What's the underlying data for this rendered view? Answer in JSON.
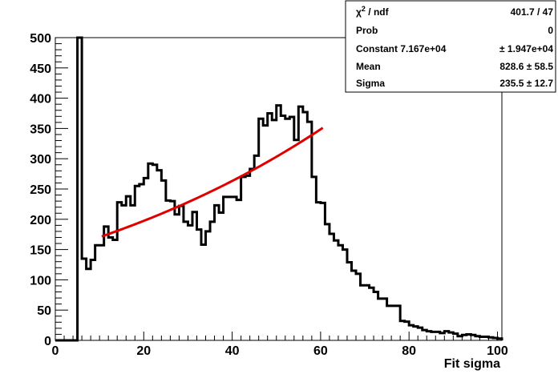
{
  "chart_data": {
    "type": "histogram",
    "title": "",
    "xlabel": "Fit sigma",
    "ylabel": "",
    "xlim": [
      0,
      101
    ],
    "ylim": [
      0,
      500
    ],
    "x_ticks": [
      0,
      20,
      40,
      60,
      80,
      100
    ],
    "y_ticks": [
      0,
      50,
      100,
      150,
      200,
      250,
      300,
      350,
      400,
      450,
      500
    ],
    "bin_width": 1,
    "bin_start": 0,
    "values": [
      0,
      0,
      0,
      0,
      0,
      500,
      135,
      118,
      133,
      157,
      157,
      188,
      170,
      166,
      228,
      223,
      238,
      223,
      255,
      258,
      268,
      292,
      290,
      281,
      264,
      231,
      230,
      208,
      222,
      196,
      190,
      212,
      183,
      158,
      180,
      196,
      223,
      211,
      237,
      237,
      237,
      232,
      270,
      272,
      283,
      305,
      366,
      355,
      375,
      364,
      388,
      371,
      366,
      369,
      331,
      386,
      377,
      361,
      270,
      228,
      227,
      192,
      176,
      165,
      157,
      150,
      129,
      115,
      110,
      91,
      91,
      87,
      80,
      69,
      69,
      57,
      57,
      57,
      32,
      31,
      25,
      23,
      21,
      17,
      15,
      14,
      14,
      12,
      15,
      13,
      11,
      7,
      9,
      10,
      9,
      7,
      6,
      6,
      5,
      4,
      3
    ],
    "fit": {
      "color": "#e00000",
      "x_range": [
        10.5,
        60.5
      ],
      "constant": 71670,
      "mean": 828.6,
      "sigma": 235.5
    },
    "stats": [
      {
        "label": "ndf_label",
        "value": "401.7 / 47"
      },
      {
        "label": "Prob",
        "value": "0"
      },
      {
        "label": "Constant 7.167e+04",
        "value": "± 1.947e+04"
      },
      {
        "label": "Mean",
        "value": "828.6 ± 58.5"
      },
      {
        "label": "Sigma",
        "value": "235.5 ± 12.7"
      }
    ],
    "chi_label": "χ",
    "chi_sup": "2",
    "chi_rest": " / ndf"
  }
}
